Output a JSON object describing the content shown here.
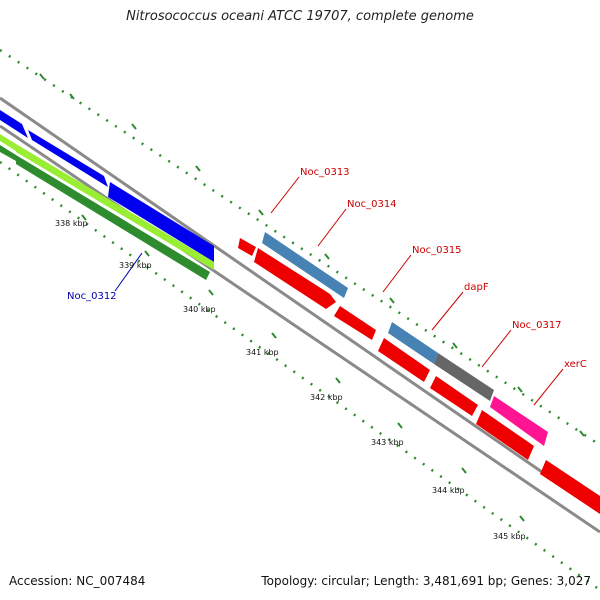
{
  "title": "Nitrosococcus oceani ATCC 19707, complete genome",
  "footer": {
    "accession": "Accession: NC_007484",
    "summary": "Topology: circular; Length: 3,481,691 bp; Genes: 3,027"
  },
  "colors": {
    "backbone": "#8a8a8a",
    "tick": "#2e8b2e",
    "label_forward": "#cc0000",
    "label_reverse": "#0000aa"
  },
  "ticks": [
    {
      "label": "338 kbp"
    },
    {
      "label": "339 kbp"
    },
    {
      "label": "340 kbp"
    },
    {
      "label": "341 kbp"
    },
    {
      "label": "342 kbp"
    },
    {
      "label": "343 kbp"
    },
    {
      "label": "344 kbp"
    },
    {
      "label": "345 kbp"
    }
  ],
  "gene_labels": [
    {
      "name": "Noc_0313",
      "strand": "forward"
    },
    {
      "name": "Noc_0314",
      "strand": "forward"
    },
    {
      "name": "Noc_0315",
      "strand": "forward"
    },
    {
      "name": "dapF",
      "strand": "forward"
    },
    {
      "name": "Noc_0317",
      "strand": "forward"
    },
    {
      "name": "xerC",
      "strand": "forward"
    },
    {
      "name": "Noc_0312",
      "strand": "reverse"
    }
  ],
  "feature_colors": [
    "#0000ee",
    "#ee0000",
    "#4682b4",
    "#666666",
    "#ff1493",
    "#99ee33",
    "#2e8b2e"
  ]
}
